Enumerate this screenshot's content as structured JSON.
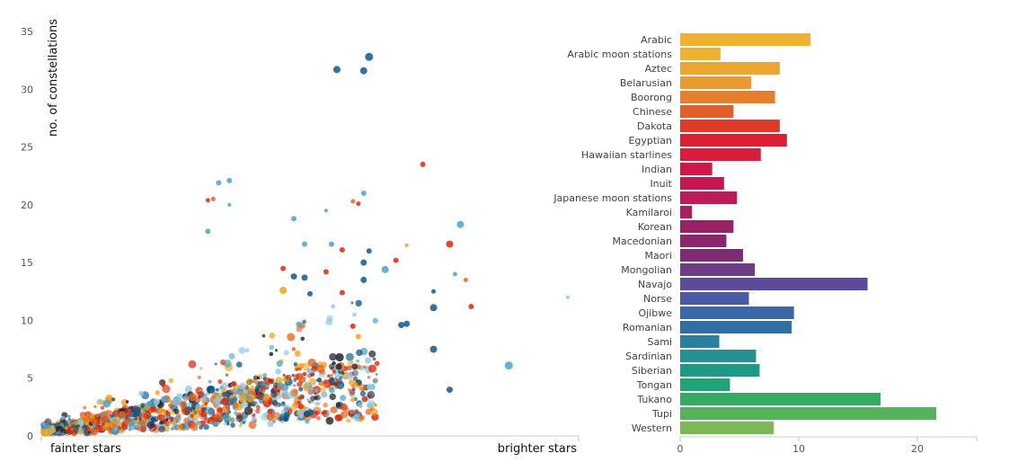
{
  "chart_data": [
    {
      "type": "scatter",
      "ylabel": "no. of constellations",
      "x_left_label": "fainter stars",
      "x_right_label": "brighter stars",
      "ylim": [
        0,
        35
      ],
      "yticks": [
        0,
        5,
        10,
        15,
        20,
        25,
        30,
        35
      ],
      "colors": [
        "#0e5a8a",
        "#4aa3c9",
        "#d62a0c",
        "#e8641c",
        "#f2a21a",
        "#1c1c2e",
        "#8fc8e0"
      ],
      "points": [
        {
          "x": 0.61,
          "y": 32.8,
          "c": 0,
          "s": 4.5
        },
        {
          "x": 0.55,
          "y": 31.7,
          "c": 0,
          "s": 4
        },
        {
          "x": 0.6,
          "y": 31.6,
          "c": 0,
          "s": 4
        },
        {
          "x": 0.71,
          "y": 23.5,
          "c": 2,
          "s": 3
        },
        {
          "x": 0.35,
          "y": 22.1,
          "c": 1,
          "s": 3
        },
        {
          "x": 0.33,
          "y": 21.9,
          "c": 1,
          "s": 3
        },
        {
          "x": 0.6,
          "y": 21.0,
          "c": 1,
          "s": 3
        },
        {
          "x": 0.31,
          "y": 20.4,
          "c": 2,
          "s": 2.5
        },
        {
          "x": 0.32,
          "y": 20.5,
          "c": 3,
          "s": 2.5
        },
        {
          "x": 0.58,
          "y": 20.3,
          "c": 3,
          "s": 2.5
        },
        {
          "x": 0.59,
          "y": 20.1,
          "c": 2,
          "s": 2.5
        },
        {
          "x": 0.78,
          "y": 18.3,
          "c": 1,
          "s": 4
        },
        {
          "x": 0.47,
          "y": 18.8,
          "c": 1,
          "s": 3
        },
        {
          "x": 0.31,
          "y": 17.7,
          "c": 1,
          "s": 3
        },
        {
          "x": 0.76,
          "y": 16.6,
          "c": 2,
          "s": 4
        },
        {
          "x": 0.49,
          "y": 16.6,
          "c": 1,
          "s": 3
        },
        {
          "x": 0.54,
          "y": 16.6,
          "c": 1,
          "s": 3
        },
        {
          "x": 0.56,
          "y": 16.1,
          "c": 2,
          "s": 3
        },
        {
          "x": 0.61,
          "y": 16.0,
          "c": 0,
          "s": 3
        },
        {
          "x": 0.66,
          "y": 15.2,
          "c": 2,
          "s": 3
        },
        {
          "x": 0.64,
          "y": 14.4,
          "c": 1,
          "s": 4
        },
        {
          "x": 0.6,
          "y": 15.0,
          "c": 0,
          "s": 3.5
        },
        {
          "x": 0.53,
          "y": 14.2,
          "c": 2,
          "s": 3
        },
        {
          "x": 0.45,
          "y": 14.5,
          "c": 2,
          "s": 3
        },
        {
          "x": 0.77,
          "y": 14.0,
          "c": 1,
          "s": 2.5
        },
        {
          "x": 0.79,
          "y": 13.5,
          "c": 3,
          "s": 2.5
        },
        {
          "x": 0.49,
          "y": 13.7,
          "c": 0,
          "s": 3.5
        },
        {
          "x": 0.47,
          "y": 13.8,
          "c": 0,
          "s": 3.5
        },
        {
          "x": 0.6,
          "y": 13.5,
          "c": 0,
          "s": 3.5
        },
        {
          "x": 0.45,
          "y": 12.6,
          "c": 4,
          "s": 4
        },
        {
          "x": 0.5,
          "y": 12.3,
          "c": 0,
          "s": 3
        },
        {
          "x": 0.56,
          "y": 12.4,
          "c": 2,
          "s": 3
        },
        {
          "x": 0.73,
          "y": 12.5,
          "c": 0,
          "s": 2.5
        },
        {
          "x": 0.73,
          "y": 11.1,
          "c": 0,
          "s": 4
        },
        {
          "x": 0.8,
          "y": 11.2,
          "c": 2,
          "s": 3
        },
        {
          "x": 0.68,
          "y": 9.7,
          "c": 0,
          "s": 3.5
        },
        {
          "x": 0.67,
          "y": 9.6,
          "c": 0,
          "s": 3.5
        },
        {
          "x": 0.58,
          "y": 9.5,
          "c": 2,
          "s": 3
        },
        {
          "x": 0.59,
          "y": 8.6,
          "c": 4,
          "s": 3
        },
        {
          "x": 0.73,
          "y": 7.5,
          "c": 0,
          "s": 4
        },
        {
          "x": 0.87,
          "y": 6.1,
          "c": 1,
          "s": 4.5
        },
        {
          "x": 0.76,
          "y": 4.0,
          "c": 0,
          "s": 3.5
        },
        {
          "x": 0.98,
          "y": 12.0,
          "c": 6,
          "s": 2
        },
        {
          "x": 0.35,
          "y": 20.0,
          "c": 1,
          "s": 2
        },
        {
          "x": 0.53,
          "y": 19.5,
          "c": 1,
          "s": 2
        },
        {
          "x": 0.68,
          "y": 16.5,
          "c": 4,
          "s": 2
        }
      ]
    },
    {
      "type": "bar",
      "orientation": "horizontal",
      "categories": [
        "Arabic",
        "Arabic moon stations",
        "Aztec",
        "Belarusian",
        "Boorong",
        "Chinese",
        "Dakota",
        "Egyptian",
        "Hawaiian starlines",
        "Indian",
        "Inuit",
        "Japanese moon stations",
        "Kamilaroi",
        "Korean",
        "Macedonian",
        "Maori",
        "Mongolian",
        "Navajo",
        "Norse",
        "Ojibwe",
        "Romanian",
        "Sami",
        "Sardinian",
        "Siberian",
        "Tongan",
        "Tukano",
        "Tupi",
        "Western"
      ],
      "values": [
        11,
        3.4,
        8.4,
        6,
        8,
        4.5,
        8.4,
        9,
        6.8,
        2.7,
        3.7,
        4.8,
        1,
        4.5,
        3.9,
        5.3,
        6.3,
        15.8,
        5.8,
        9.6,
        9.4,
        3.3,
        6.4,
        6.7,
        4.2,
        16.9,
        21.6,
        7.9
      ],
      "colors": [
        "#f0b22e",
        "#efb230",
        "#eba632",
        "#e99a31",
        "#e57f2b",
        "#e25f27",
        "#df3a2a",
        "#dc1f32",
        "#da1c3d",
        "#d0174a",
        "#c71753",
        "#bc1a5b",
        "#ab1c62",
        "#9a2068",
        "#8b266d",
        "#7d2b73",
        "#703c87",
        "#5c4a9a",
        "#4a5ba3",
        "#3a67a8",
        "#306fa4",
        "#2b7f9e",
        "#258f92",
        "#1d9a85",
        "#1fa377",
        "#33ab62",
        "#55b35b",
        "#7bb956"
      ],
      "xlim": [
        0,
        25
      ],
      "xticks": [
        0,
        10,
        20
      ]
    }
  ]
}
